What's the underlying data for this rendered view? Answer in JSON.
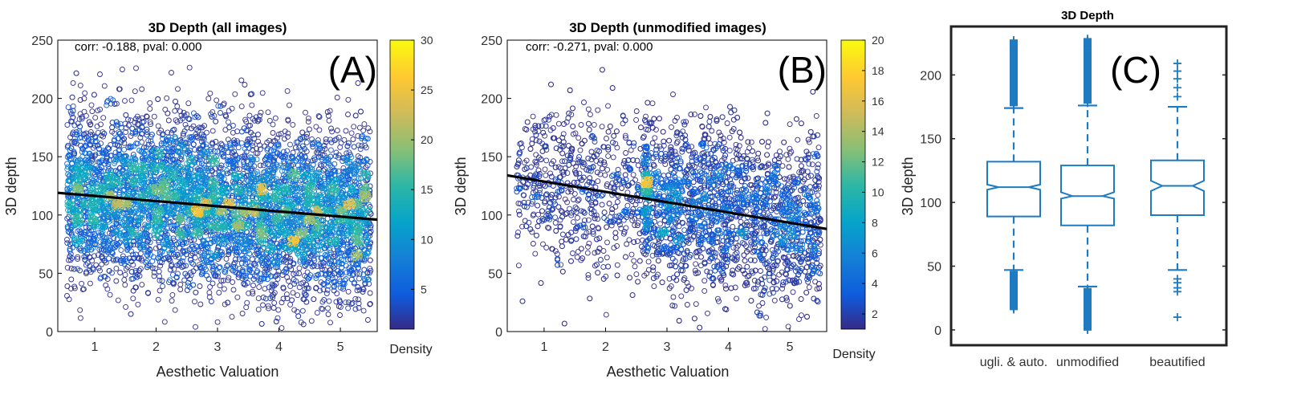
{
  "chart_data": [
    {
      "panel_label": "(A)",
      "type": "scatter",
      "title": "3D Depth (all images)",
      "annotation": "corr: -0.188, pval: 0.000",
      "xlabel": "Aesthetic Valuation",
      "ylabel": "3D depth",
      "xlim": [
        0.4,
        5.6
      ],
      "ylim": [
        0,
        250
      ],
      "xticks": [
        1,
        2,
        3,
        4,
        5
      ],
      "yticks": [
        0,
        50,
        100,
        150,
        200,
        250
      ],
      "grid": false,
      "regression_line": {
        "x": [
          0.4,
          5.6
        ],
        "y": [
          119,
          96
        ]
      },
      "colorbar": {
        "label": "Density",
        "min": 1,
        "max": 30,
        "ticks": [
          5,
          10,
          15,
          20,
          25,
          30
        ],
        "colormap": "parula"
      },
      "point_count": 6500,
      "cloud": {
        "x_range": [
          0.55,
          5.5
        ],
        "y_mean": 110,
        "y_sd": 35,
        "y_range": [
          2,
          230
        ]
      }
    },
    {
      "panel_label": "(B)",
      "type": "scatter",
      "title": "3D Depth (unmodified images)",
      "annotation": "corr: -0.271, pval: 0.000",
      "xlabel": "Aesthetic Valuation",
      "ylabel": "3D depth",
      "xlim": [
        0.4,
        5.6
      ],
      "ylim": [
        0,
        250
      ],
      "xticks": [
        1,
        2,
        3,
        4,
        5
      ],
      "yticks": [
        0,
        50,
        100,
        150,
        200,
        250
      ],
      "grid": false,
      "regression_line": {
        "x": [
          0.4,
          5.6
        ],
        "y": [
          134,
          88
        ]
      },
      "colorbar": {
        "label": "Density",
        "min": 1,
        "max": 20,
        "ticks": [
          2,
          4,
          6,
          8,
          10,
          12,
          14,
          16,
          18,
          20
        ],
        "colormap": "parula"
      },
      "point_count": 3800,
      "cloud": {
        "x_range": [
          0.55,
          5.5
        ],
        "y_mean": 108,
        "y_sd": 35,
        "y_range": [
          2,
          230
        ]
      }
    },
    {
      "panel_label": "(C)",
      "type": "box",
      "title": "3D Depth",
      "ylabel": "3D depth",
      "categories": [
        "ugli. & auto.",
        "unmodified",
        "beautified"
      ],
      "ylim": [
        -12,
        238
      ],
      "yticks": [
        0,
        50,
        100,
        150,
        200
      ],
      "notched": true,
      "boxes": [
        {
          "q1": 89,
          "median": 112,
          "q3": 132,
          "notch": [
            110,
            114
          ],
          "whisker_low": 47,
          "whisker_high": 174,
          "outliers_low_range": [
            16,
            46
          ],
          "outliers_high_range": [
            176,
            228
          ]
        },
        {
          "q1": 82,
          "median": 105,
          "q3": 129,
          "notch": [
            103,
            108
          ],
          "whisker_low": 34,
          "whisker_high": 176,
          "outliers_low_range": [
            0,
            33
          ],
          "outliers_high_range": [
            178,
            229
          ]
        },
        {
          "q1": 90,
          "median": 113,
          "q3": 133,
          "notch": [
            109,
            117
          ],
          "whisker_low": 47,
          "whisker_high": 175,
          "outliers_low": [
            10,
            30,
            33,
            37,
            40
          ],
          "outliers_high": [
            183,
            190,
            197,
            203,
            209
          ]
        }
      ]
    }
  ],
  "colors": {
    "box_blue": "#1f7bc1",
    "point_low": "#5a3fd4",
    "axis": "#000000",
    "tick_text": "#333333",
    "regression": "#000000"
  }
}
